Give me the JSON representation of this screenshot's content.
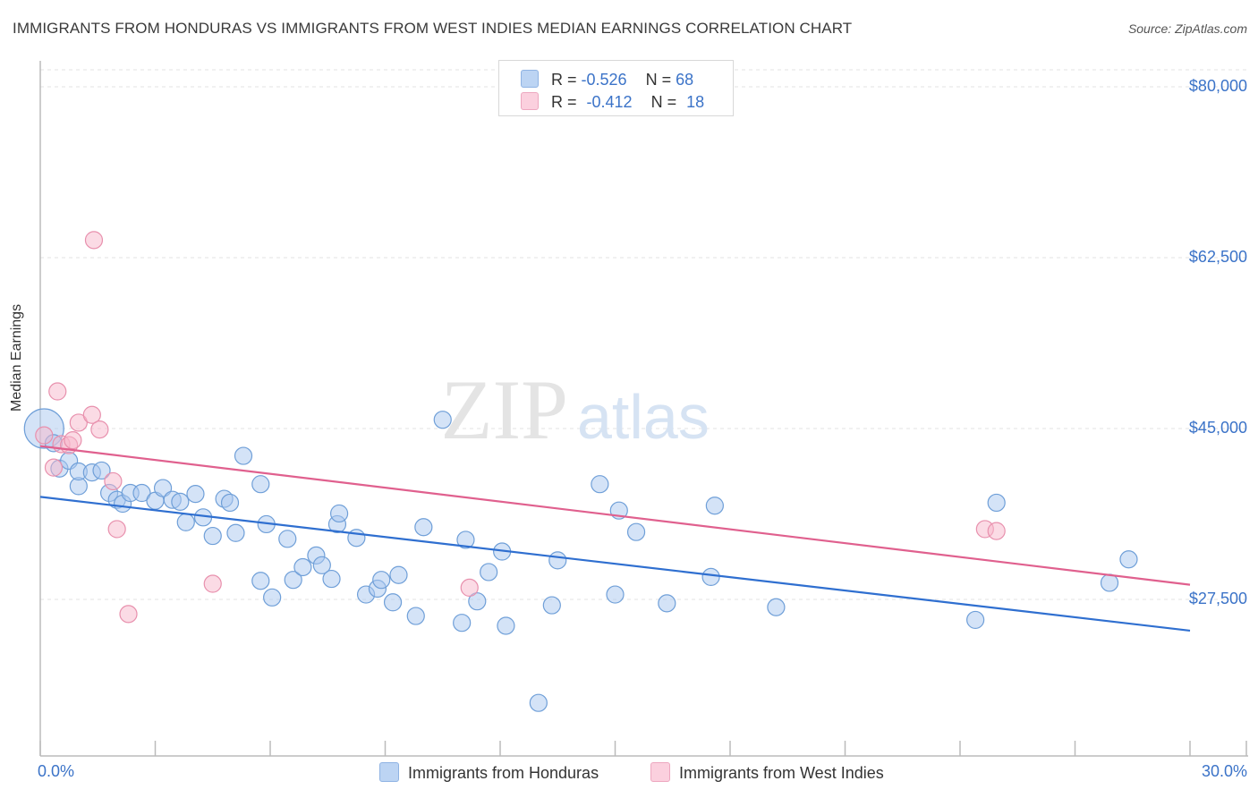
{
  "title": "IMMIGRANTS FROM HONDURAS VS IMMIGRANTS FROM WEST INDIES MEDIAN EARNINGS CORRELATION CHART",
  "source": "Source: ZipAtlas.com",
  "watermark": {
    "zip": "ZIP",
    "atlas": "atlas"
  },
  "legend": {
    "r_label": "R =",
    "n_label": "N =",
    "series": [
      {
        "name": "Immigrants from Honduras",
        "r": "-0.526",
        "n": "68",
        "color": "#a9c8f0",
        "stroke": "#6f9fd8"
      },
      {
        "name": "Immigrants from West Indies",
        "r": "-0.412",
        "n": "18",
        "color": "#f7b7cc",
        "stroke": "#e890ad"
      }
    ]
  },
  "chart_data": {
    "type": "scatter",
    "title": "IMMIGRANTS FROM HONDURAS VS IMMIGRANTS FROM WEST INDIES MEDIAN EARNINGS CORRELATION CHART",
    "xlabel": "",
    "ylabel": "Median Earnings",
    "xlim": [
      0,
      30
    ],
    "ylim": [
      10000,
      82000
    ],
    "x_tick_labels": [
      "0.0%",
      "30.0%"
    ],
    "y_ticks": [
      {
        "value": 27500,
        "label": "$27,500"
      },
      {
        "value": 45000,
        "label": "$45,000"
      },
      {
        "value": 62500,
        "label": "$62,500"
      },
      {
        "value": 80000,
        "label": "$80,000"
      }
    ],
    "series": [
      {
        "name": "Immigrants from Honduras",
        "color": "#a9c8f0",
        "stroke": "#6f9fd8",
        "trend": {
          "x": [
            0,
            30
          ],
          "y": [
            38000,
            24300
          ],
          "color": "#2f6fd0"
        },
        "points": [
          {
            "x": 0.1,
            "y": 45000,
            "big": true
          },
          {
            "x": 0.35,
            "y": 43500
          },
          {
            "x": 0.5,
            "y": 40900
          },
          {
            "x": 0.75,
            "y": 41700
          },
          {
            "x": 1.0,
            "y": 39100
          },
          {
            "x": 1.0,
            "y": 40600
          },
          {
            "x": 1.35,
            "y": 40500
          },
          {
            "x": 1.6,
            "y": 40700
          },
          {
            "x": 1.8,
            "y": 38400
          },
          {
            "x": 2.0,
            "y": 37700
          },
          {
            "x": 2.15,
            "y": 37300
          },
          {
            "x": 2.35,
            "y": 38400
          },
          {
            "x": 2.65,
            "y": 38400
          },
          {
            "x": 3.0,
            "y": 37600
          },
          {
            "x": 3.2,
            "y": 38900
          },
          {
            "x": 3.45,
            "y": 37700
          },
          {
            "x": 3.65,
            "y": 37500
          },
          {
            "x": 3.8,
            "y": 35400
          },
          {
            "x": 4.05,
            "y": 38300
          },
          {
            "x": 4.25,
            "y": 35900
          },
          {
            "x": 4.5,
            "y": 34000
          },
          {
            "x": 4.8,
            "y": 37800
          },
          {
            "x": 4.95,
            "y": 37400
          },
          {
            "x": 5.1,
            "y": 34300
          },
          {
            "x": 5.3,
            "y": 42200
          },
          {
            "x": 5.75,
            "y": 29400
          },
          {
            "x": 5.75,
            "y": 39300
          },
          {
            "x": 5.9,
            "y": 35200
          },
          {
            "x": 6.05,
            "y": 27700
          },
          {
            "x": 6.45,
            "y": 33700
          },
          {
            "x": 6.6,
            "y": 29500
          },
          {
            "x": 6.85,
            "y": 30800
          },
          {
            "x": 7.2,
            "y": 32000
          },
          {
            "x": 7.35,
            "y": 31000
          },
          {
            "x": 7.6,
            "y": 29600
          },
          {
            "x": 7.75,
            "y": 35200
          },
          {
            "x": 7.8,
            "y": 36300
          },
          {
            "x": 8.25,
            "y": 33800
          },
          {
            "x": 8.5,
            "y": 28000
          },
          {
            "x": 8.8,
            "y": 28600
          },
          {
            "x": 8.9,
            "y": 29500
          },
          {
            "x": 9.2,
            "y": 27200
          },
          {
            "x": 9.35,
            "y": 30000
          },
          {
            "x": 9.8,
            "y": 25800
          },
          {
            "x": 10.0,
            "y": 34900
          },
          {
            "x": 10.5,
            "y": 45900
          },
          {
            "x": 11.0,
            "y": 25100
          },
          {
            "x": 11.1,
            "y": 33600
          },
          {
            "x": 11.4,
            "y": 27300
          },
          {
            "x": 11.7,
            "y": 30300
          },
          {
            "x": 12.05,
            "y": 32400
          },
          {
            "x": 12.15,
            "y": 24800
          },
          {
            "x": 13.0,
            "y": 16900
          },
          {
            "x": 13.35,
            "y": 26900
          },
          {
            "x": 13.5,
            "y": 31500
          },
          {
            "x": 14.6,
            "y": 39300
          },
          {
            "x": 15.0,
            "y": 28000
          },
          {
            "x": 15.1,
            "y": 36600
          },
          {
            "x": 15.55,
            "y": 34400
          },
          {
            "x": 16.35,
            "y": 27100
          },
          {
            "x": 17.5,
            "y": 29800
          },
          {
            "x": 17.6,
            "y": 37100
          },
          {
            "x": 19.2,
            "y": 26700
          },
          {
            "x": 24.4,
            "y": 25400
          },
          {
            "x": 24.95,
            "y": 37400
          },
          {
            "x": 27.9,
            "y": 29200
          },
          {
            "x": 28.4,
            "y": 31600
          }
        ]
      },
      {
        "name": "Immigrants from West Indies",
        "color": "#f7b7cc",
        "stroke": "#e890ad",
        "trend": {
          "x": [
            0,
            30
          ],
          "y": [
            43200,
            29000
          ],
          "color": "#e0608e"
        },
        "points": [
          {
            "x": 0.1,
            "y": 44300
          },
          {
            "x": 0.35,
            "y": 41000
          },
          {
            "x": 0.45,
            "y": 48800
          },
          {
            "x": 0.55,
            "y": 43400
          },
          {
            "x": 0.75,
            "y": 43300
          },
          {
            "x": 0.85,
            "y": 43800
          },
          {
            "x": 1.0,
            "y": 45600
          },
          {
            "x": 1.35,
            "y": 46400
          },
          {
            "x": 1.4,
            "y": 64300
          },
          {
            "x": 1.55,
            "y": 44900
          },
          {
            "x": 1.9,
            "y": 39600
          },
          {
            "x": 2.0,
            "y": 34700
          },
          {
            "x": 2.3,
            "y": 26000
          },
          {
            "x": 4.5,
            "y": 29100
          },
          {
            "x": 11.2,
            "y": 28700
          },
          {
            "x": 24.65,
            "y": 34700
          },
          {
            "x": 24.95,
            "y": 34500
          }
        ]
      }
    ]
  }
}
